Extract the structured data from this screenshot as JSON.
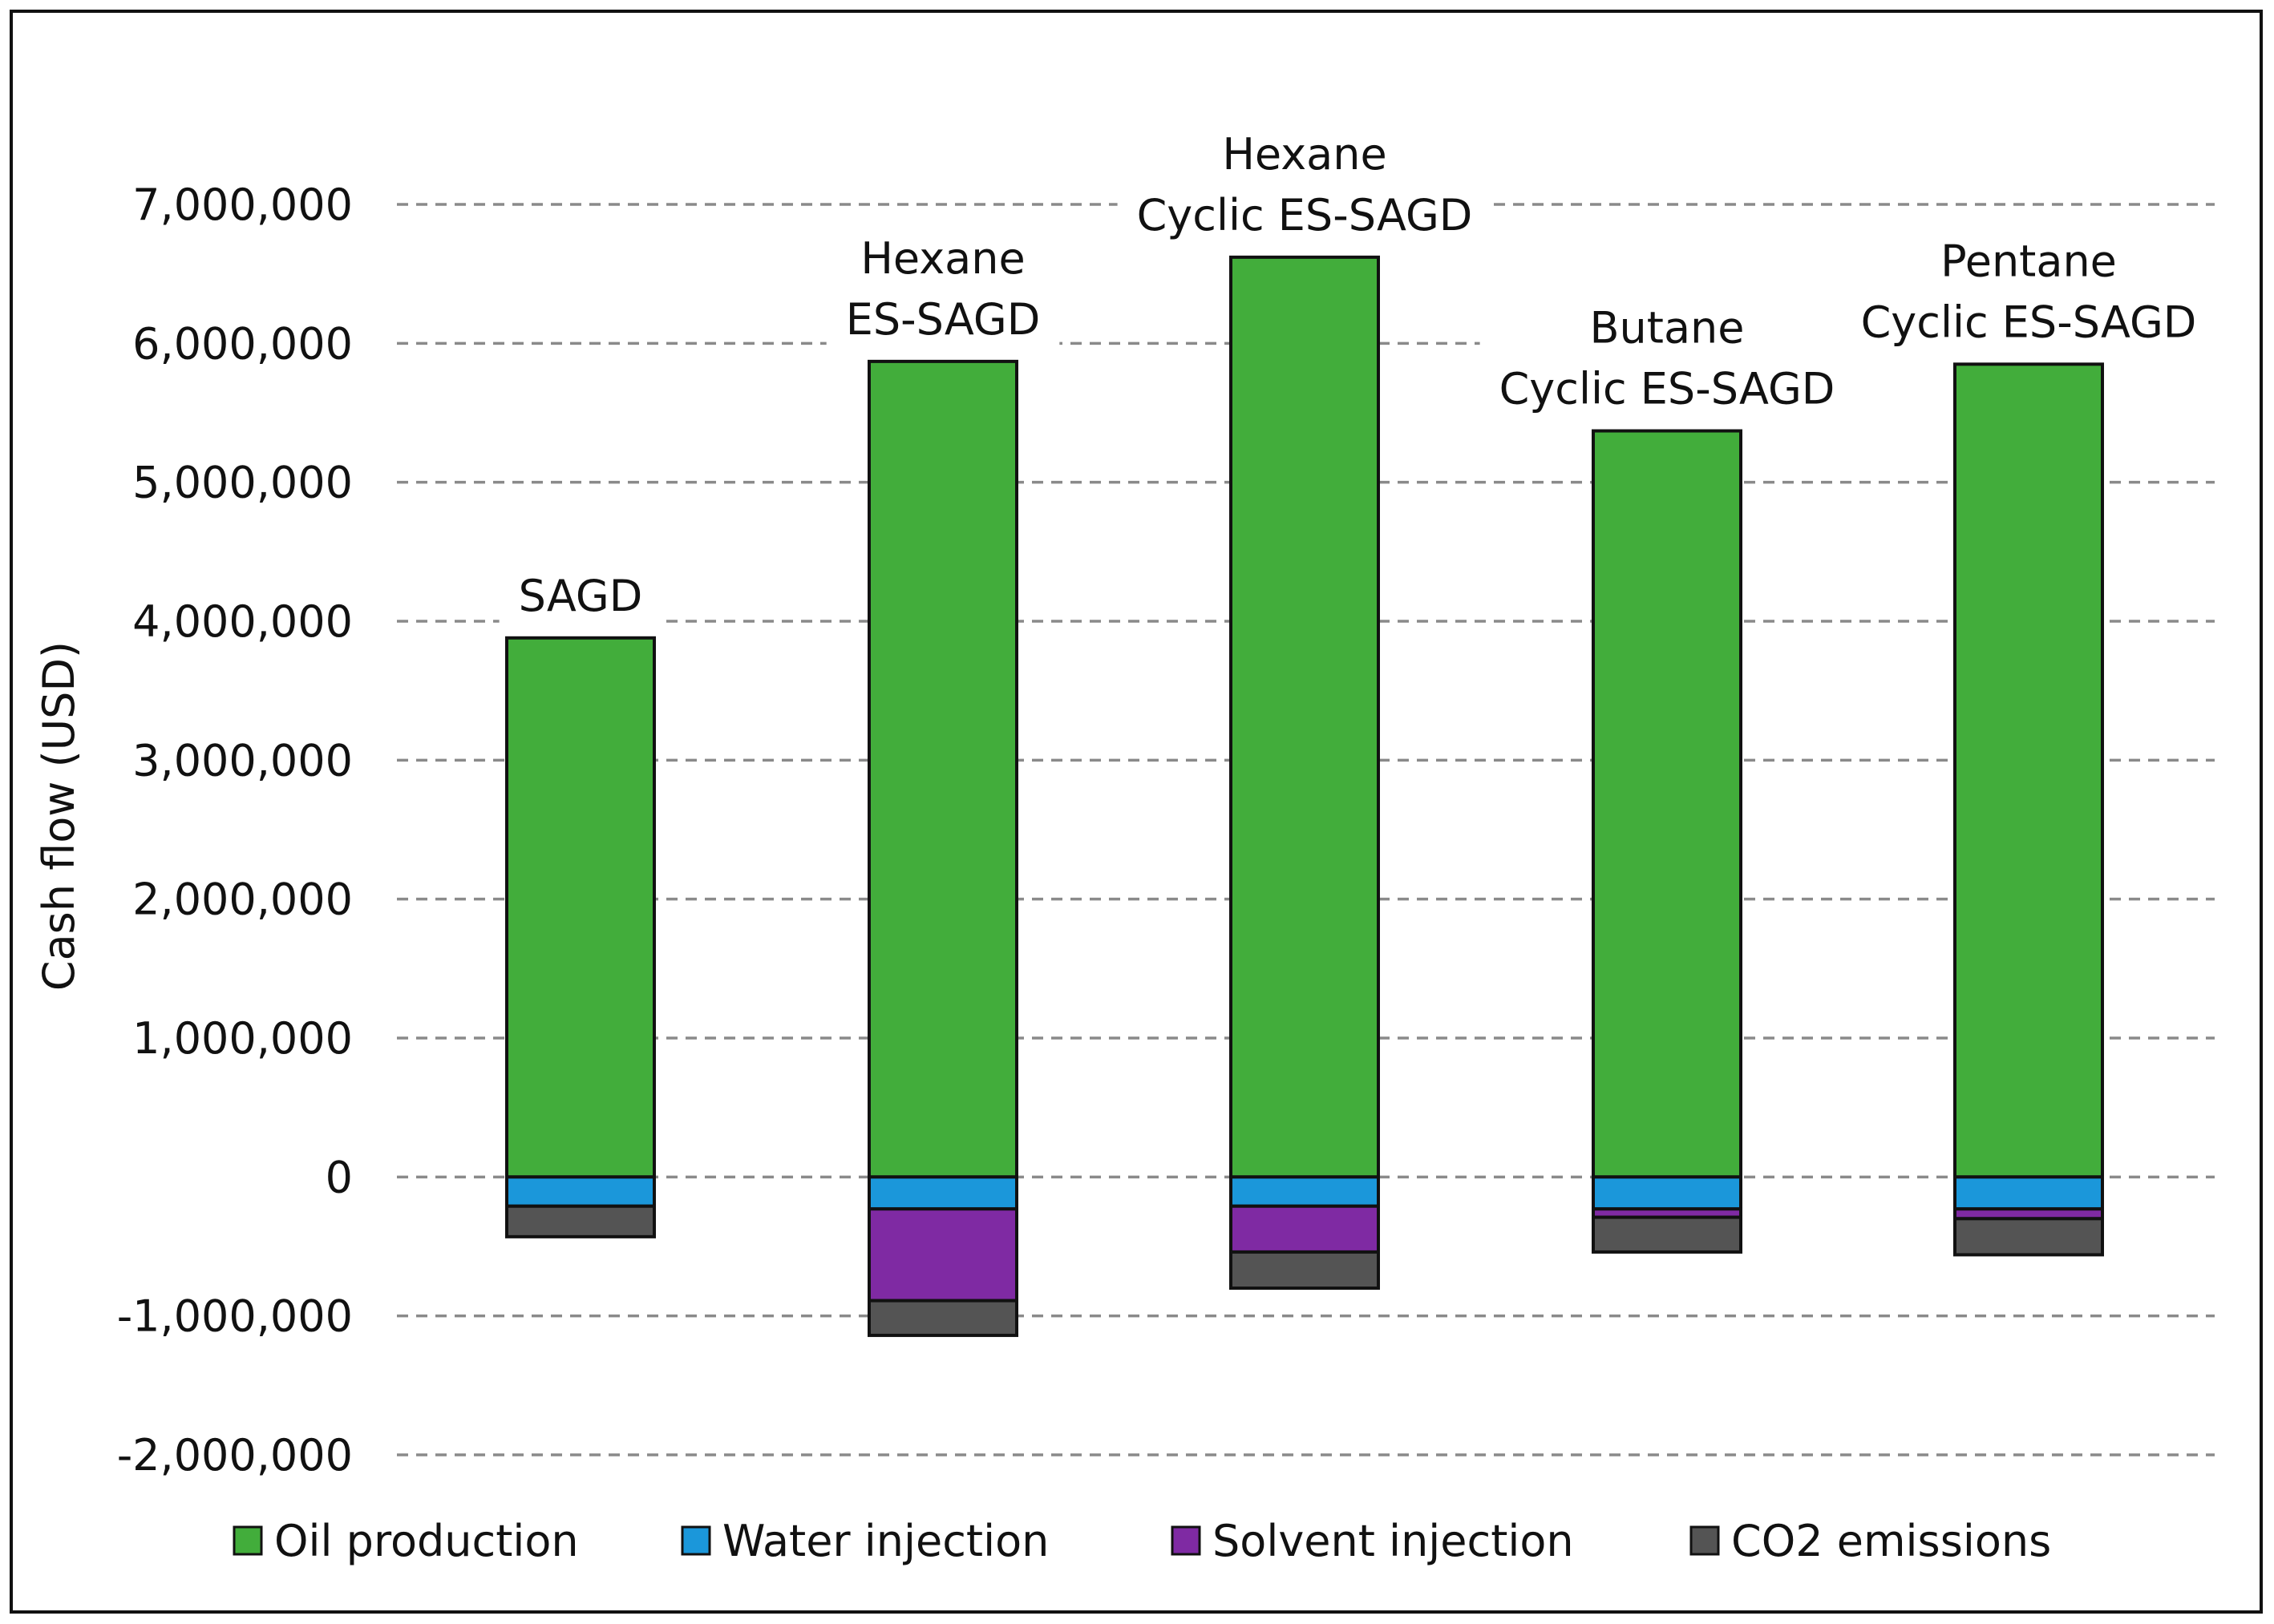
{
  "chart_data": {
    "type": "bar",
    "stacked": true,
    "title": "",
    "xlabel": "",
    "ylabel": "Cash flow (USD)",
    "ylim": [
      -2000000,
      7000000
    ],
    "y_ticks": [
      {
        "value": 7000000,
        "label": "7,000,000"
      },
      {
        "value": 6000000,
        "label": "6,000,000"
      },
      {
        "value": 5000000,
        "label": "5,000,000"
      },
      {
        "value": 4000000,
        "label": "4,000,000"
      },
      {
        "value": 3000000,
        "label": "3,000,000"
      },
      {
        "value": 2000000,
        "label": "2,000,000"
      },
      {
        "value": 1000000,
        "label": "1,000,000"
      },
      {
        "value": 0,
        "label": "0"
      },
      {
        "value": -1000000,
        "label": "-1,000,000"
      },
      {
        "value": -2000000,
        "label": "-2,000,000"
      }
    ],
    "grid": true,
    "legend_position": "bottom",
    "categories": [
      {
        "lines": [
          "SAGD"
        ]
      },
      {
        "lines": [
          "Hexane",
          "ES-SAGD"
        ]
      },
      {
        "lines": [
          "Hexane",
          "Cyclic ES-SAGD"
        ]
      },
      {
        "lines": [
          "Butane",
          "Cyclic ES-SAGD"
        ]
      },
      {
        "lines": [
          "Pentane",
          "Cyclic ES-SAGD"
        ]
      }
    ],
    "series": [
      {
        "name": "Oil production",
        "color": "#42ad3b",
        "values": [
          3880000,
          5870000,
          6620000,
          5370000,
          5850000
        ]
      },
      {
        "name": "Water injection",
        "color": "#1b97da",
        "values": [
          -210000,
          -230000,
          -210000,
          -230000,
          -230000
        ]
      },
      {
        "name": "Solvent injection",
        "color": "#7f2aa3",
        "values": [
          0,
          -660000,
          -330000,
          -60000,
          -70000
        ]
      },
      {
        "name": "CO2 emissions",
        "color": "#545454",
        "values": [
          -220000,
          -250000,
          -260000,
          -250000,
          -260000
        ]
      }
    ]
  }
}
